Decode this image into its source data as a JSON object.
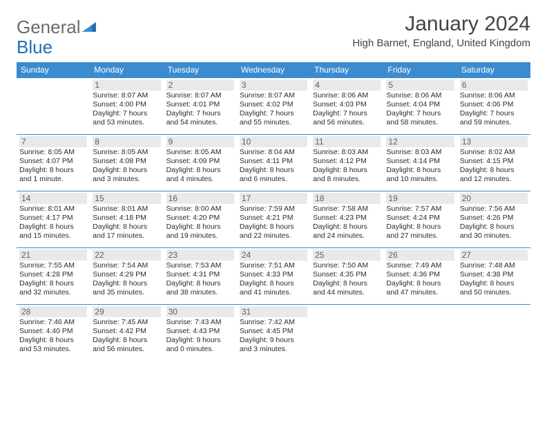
{
  "logo": {
    "text1": "General",
    "text2": "Blue"
  },
  "title": "January 2024",
  "location": "High Barnet, England, United Kingdom",
  "colors": {
    "header_bg": "#3b8bd0",
    "header_text": "#ffffff",
    "daynum_bg": "#e9e9e9",
    "daynum_text": "#5f5f5f",
    "body_text": "#2b2b2b",
    "title_text": "#434343",
    "logo_gray": "#6b6b6b",
    "logo_blue": "#1f6fb5"
  },
  "typography": {
    "title_fontsize": 30,
    "location_fontsize": 15,
    "header_fontsize": 12,
    "daynum_fontsize": 12,
    "cell_fontsize": 10.5
  },
  "weekdays": [
    "Sunday",
    "Monday",
    "Tuesday",
    "Wednesday",
    "Thursday",
    "Friday",
    "Saturday"
  ],
  "weeks": [
    [
      null,
      {
        "n": "1",
        "sr": "8:07 AM",
        "ss": "4:00 PM",
        "dl": "7 hours and 53 minutes."
      },
      {
        "n": "2",
        "sr": "8:07 AM",
        "ss": "4:01 PM",
        "dl": "7 hours and 54 minutes."
      },
      {
        "n": "3",
        "sr": "8:07 AM",
        "ss": "4:02 PM",
        "dl": "7 hours and 55 minutes."
      },
      {
        "n": "4",
        "sr": "8:06 AM",
        "ss": "4:03 PM",
        "dl": "7 hours and 56 minutes."
      },
      {
        "n": "5",
        "sr": "8:06 AM",
        "ss": "4:04 PM",
        "dl": "7 hours and 58 minutes."
      },
      {
        "n": "6",
        "sr": "8:06 AM",
        "ss": "4:06 PM",
        "dl": "7 hours and 59 minutes."
      }
    ],
    [
      {
        "n": "7",
        "sr": "8:05 AM",
        "ss": "4:07 PM",
        "dl": "8 hours and 1 minute."
      },
      {
        "n": "8",
        "sr": "8:05 AM",
        "ss": "4:08 PM",
        "dl": "8 hours and 3 minutes."
      },
      {
        "n": "9",
        "sr": "8:05 AM",
        "ss": "4:09 PM",
        "dl": "8 hours and 4 minutes."
      },
      {
        "n": "10",
        "sr": "8:04 AM",
        "ss": "4:11 PM",
        "dl": "8 hours and 6 minutes."
      },
      {
        "n": "11",
        "sr": "8:03 AM",
        "ss": "4:12 PM",
        "dl": "8 hours and 8 minutes."
      },
      {
        "n": "12",
        "sr": "8:03 AM",
        "ss": "4:14 PM",
        "dl": "8 hours and 10 minutes."
      },
      {
        "n": "13",
        "sr": "8:02 AM",
        "ss": "4:15 PM",
        "dl": "8 hours and 12 minutes."
      }
    ],
    [
      {
        "n": "14",
        "sr": "8:01 AM",
        "ss": "4:17 PM",
        "dl": "8 hours and 15 minutes."
      },
      {
        "n": "15",
        "sr": "8:01 AM",
        "ss": "4:18 PM",
        "dl": "8 hours and 17 minutes."
      },
      {
        "n": "16",
        "sr": "8:00 AM",
        "ss": "4:20 PM",
        "dl": "8 hours and 19 minutes."
      },
      {
        "n": "17",
        "sr": "7:59 AM",
        "ss": "4:21 PM",
        "dl": "8 hours and 22 minutes."
      },
      {
        "n": "18",
        "sr": "7:58 AM",
        "ss": "4:23 PM",
        "dl": "8 hours and 24 minutes."
      },
      {
        "n": "19",
        "sr": "7:57 AM",
        "ss": "4:24 PM",
        "dl": "8 hours and 27 minutes."
      },
      {
        "n": "20",
        "sr": "7:56 AM",
        "ss": "4:26 PM",
        "dl": "8 hours and 30 minutes."
      }
    ],
    [
      {
        "n": "21",
        "sr": "7:55 AM",
        "ss": "4:28 PM",
        "dl": "8 hours and 32 minutes."
      },
      {
        "n": "22",
        "sr": "7:54 AM",
        "ss": "4:29 PM",
        "dl": "8 hours and 35 minutes."
      },
      {
        "n": "23",
        "sr": "7:53 AM",
        "ss": "4:31 PM",
        "dl": "8 hours and 38 minutes."
      },
      {
        "n": "24",
        "sr": "7:51 AM",
        "ss": "4:33 PM",
        "dl": "8 hours and 41 minutes."
      },
      {
        "n": "25",
        "sr": "7:50 AM",
        "ss": "4:35 PM",
        "dl": "8 hours and 44 minutes."
      },
      {
        "n": "26",
        "sr": "7:49 AM",
        "ss": "4:36 PM",
        "dl": "8 hours and 47 minutes."
      },
      {
        "n": "27",
        "sr": "7:48 AM",
        "ss": "4:38 PM",
        "dl": "8 hours and 50 minutes."
      }
    ],
    [
      {
        "n": "28",
        "sr": "7:46 AM",
        "ss": "4:40 PM",
        "dl": "8 hours and 53 minutes."
      },
      {
        "n": "29",
        "sr": "7:45 AM",
        "ss": "4:42 PM",
        "dl": "8 hours and 56 minutes."
      },
      {
        "n": "30",
        "sr": "7:43 AM",
        "ss": "4:43 PM",
        "dl": "9 hours and 0 minutes."
      },
      {
        "n": "31",
        "sr": "7:42 AM",
        "ss": "4:45 PM",
        "dl": "9 hours and 3 minutes."
      },
      null,
      null,
      null
    ]
  ]
}
